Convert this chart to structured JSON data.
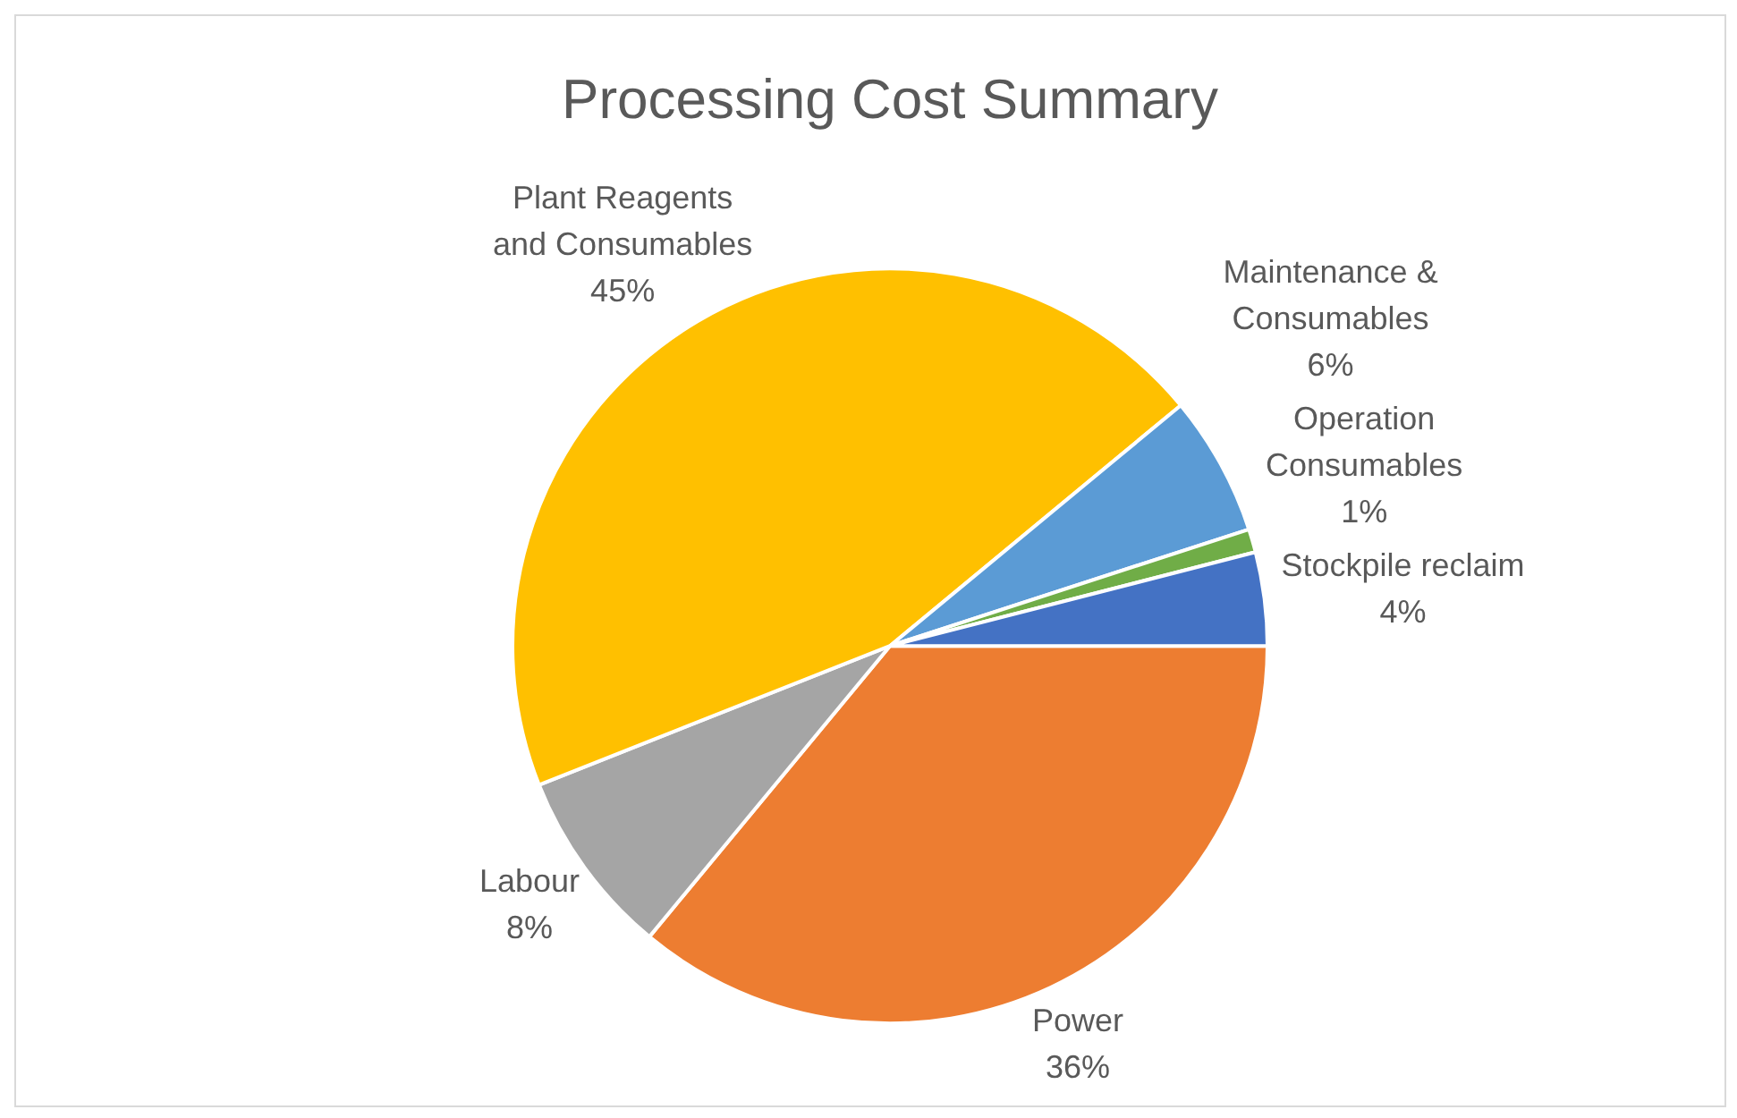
{
  "chart_data": {
    "type": "pie",
    "title": "Processing Cost Summary",
    "categories": [
      "Power",
      "Labour",
      "Plant Reagents and Consumables",
      "Maintenance & Consumables",
      "Operation Consumables",
      "Stockpile reclaim"
    ],
    "values": [
      36,
      8,
      45,
      6,
      1,
      4
    ],
    "colors": [
      "#ed7d31",
      "#a5a5a5",
      "#ffc000",
      "#5b9bd5",
      "#70ad47",
      "#4472c4"
    ],
    "value_labels": [
      "36%",
      "8%",
      "45%",
      "6%",
      "1%",
      "4%"
    ],
    "legend": false
  }
}
